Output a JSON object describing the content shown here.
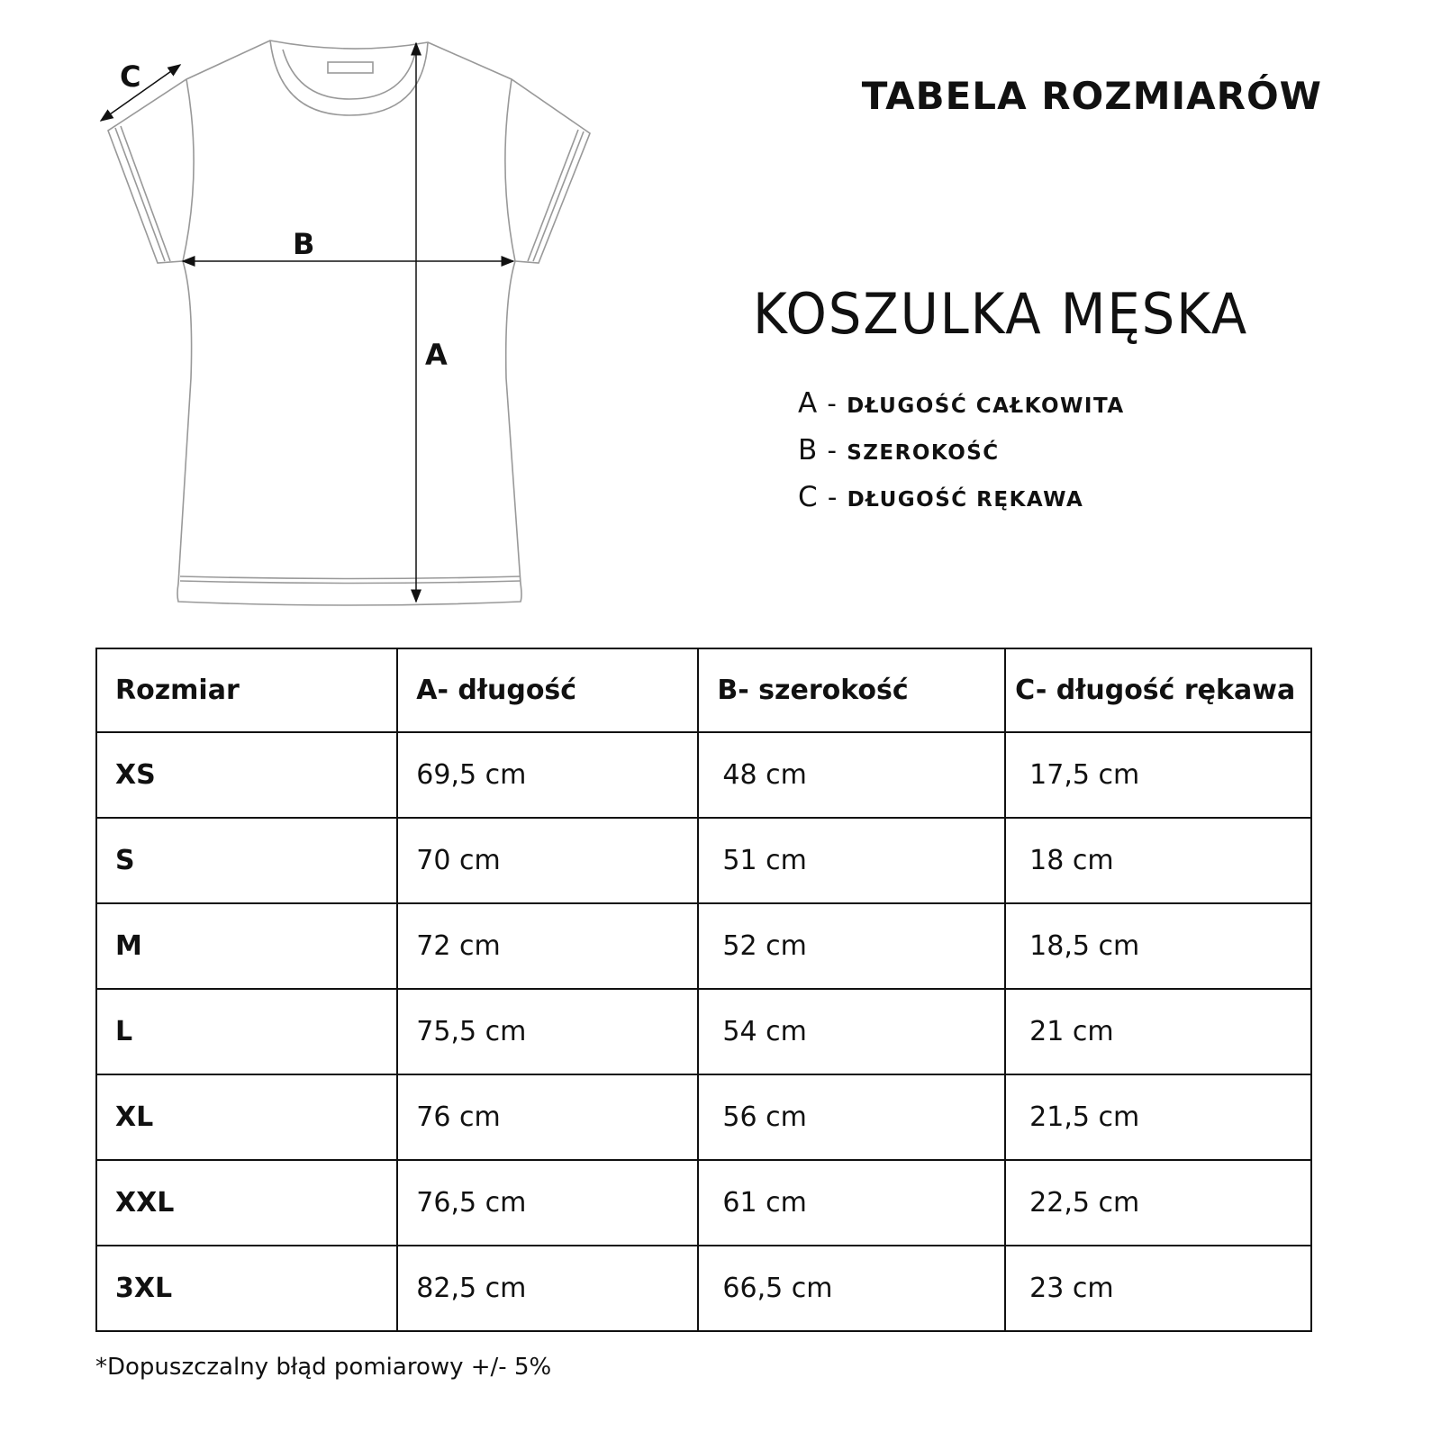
{
  "title": "TABELA ROZMIARÓW",
  "subtitle": "KOSZULKA MĘSKA",
  "diagram": {
    "label_a": "A",
    "label_b": "B",
    "label_c": "C"
  },
  "legend": [
    {
      "key": "A",
      "text": "DŁUGOŚĆ CAŁKOWITA"
    },
    {
      "key": "B",
      "text": "SZEROKOŚĆ"
    },
    {
      "key": "C",
      "text": "DŁUGOŚĆ RĘKAWA"
    }
  ],
  "table": {
    "headers": [
      "Rozmiar",
      "A- długość",
      "B- szerokość",
      "C- długość rękawa"
    ],
    "rows": [
      [
        "XS",
        "69,5 cm",
        "48 cm",
        "17,5 cm"
      ],
      [
        "S",
        "70 cm",
        "51 cm",
        "18 cm"
      ],
      [
        "M",
        "72 cm",
        "52 cm",
        "18,5 cm"
      ],
      [
        "L",
        "75,5 cm",
        "54 cm",
        "21 cm"
      ],
      [
        "XL",
        "76 cm",
        "56 cm",
        "21,5 cm"
      ],
      [
        "XXL",
        "76,5 cm",
        "61 cm",
        "22,5 cm"
      ],
      [
        "3XL",
        "82,5 cm",
        "66,5 cm",
        "23 cm"
      ]
    ]
  },
  "note": "*Dopuszczalny błąd pomiarowy +/- 5%"
}
